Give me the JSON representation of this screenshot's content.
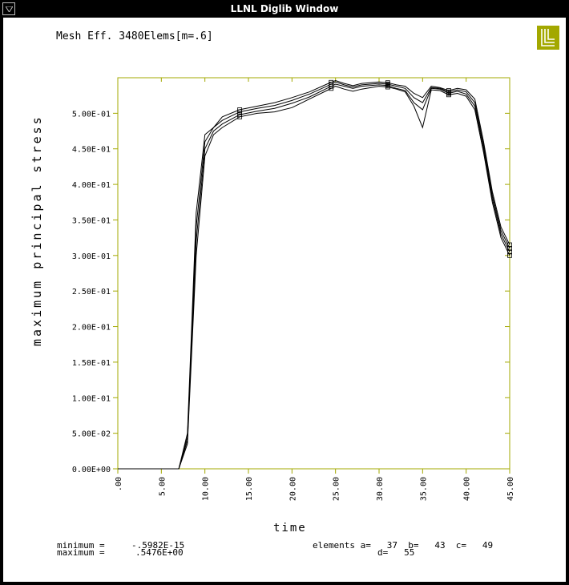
{
  "window": {
    "title": "LLNL Diglib Window",
    "logo_color": "#a3a800",
    "frame_color": "#000000"
  },
  "footer": {
    "minimum_label": "minimum =",
    "minimum_value": "-.5982E-15",
    "maximum_label": "maximum =",
    "maximum_value": ".5476E+00",
    "elements_text": "elements a=   37  b=   43  c=   49",
    "elements_d": "d=   55"
  },
  "chart_data": {
    "type": "line",
    "title": "Mesh Eff. 3480Elems[m=.6]",
    "xlabel": "time",
    "ylabel": "maximum principal stress",
    "xlim": [
      0,
      45
    ],
    "ylim": [
      0,
      0.55
    ],
    "x_ticks": [
      0,
      5,
      10,
      15,
      20,
      25,
      30,
      35,
      40,
      45
    ],
    "x_tick_labels": [
      ".00",
      "5.00",
      "10.00",
      "15.00",
      "20.00",
      "25.00",
      "30.00",
      "35.00",
      "40.00",
      "45.00"
    ],
    "y_ticks": [
      0,
      0.05,
      0.1,
      0.15,
      0.2,
      0.25,
      0.3,
      0.35,
      0.4,
      0.45,
      0.5
    ],
    "y_tick_labels": [
      "0.00E+00",
      "5.00E-02",
      "1.00E-01",
      "1.50E-01",
      "2.00E-01",
      "2.50E-01",
      "3.00E-01",
      "3.50E-01",
      "4.00E-01",
      "4.50E-01",
      "5.00E-01"
    ],
    "frame_color": "#a3a800",
    "x": [
      0,
      2,
      4,
      6,
      7,
      8,
      9,
      10,
      11,
      12,
      14,
      16,
      18,
      20,
      22,
      24,
      25,
      26,
      27,
      28,
      30,
      31,
      32,
      33,
      34,
      35,
      36,
      37,
      38,
      39,
      40,
      41,
      42,
      43,
      44,
      45
    ],
    "series": [
      {
        "values": [
          0,
          0,
          0,
          0,
          0,
          0.05,
          0.36,
          0.47,
          0.48,
          0.495,
          0.505,
          0.51,
          0.515,
          0.522,
          0.53,
          0.541,
          0.546,
          0.542,
          0.539,
          0.542,
          0.544,
          0.543,
          0.54,
          0.538,
          0.528,
          0.522,
          0.538,
          0.536,
          0.532,
          0.535,
          0.533,
          0.52,
          0.46,
          0.39,
          0.34,
          0.315
        ]
      },
      {
        "values": [
          0,
          0,
          0,
          0,
          0,
          0.045,
          0.34,
          0.46,
          0.48,
          0.49,
          0.502,
          0.507,
          0.511,
          0.518,
          0.527,
          0.538,
          0.544,
          0.54,
          0.537,
          0.54,
          0.542,
          0.541,
          0.538,
          0.535,
          0.522,
          0.515,
          0.536,
          0.535,
          0.53,
          0.533,
          0.53,
          0.515,
          0.455,
          0.385,
          0.335,
          0.31
        ]
      },
      {
        "values": [
          0,
          0,
          0,
          0,
          0,
          0.04,
          0.32,
          0.45,
          0.475,
          0.485,
          0.498,
          0.503,
          0.507,
          0.514,
          0.523,
          0.535,
          0.541,
          0.538,
          0.535,
          0.538,
          0.54,
          0.539,
          0.535,
          0.532,
          0.515,
          0.505,
          0.535,
          0.534,
          0.528,
          0.531,
          0.527,
          0.51,
          0.45,
          0.38,
          0.33,
          0.305
        ]
      },
      {
        "values": [
          0,
          0,
          0,
          0,
          0,
          0.035,
          0.3,
          0.44,
          0.47,
          0.48,
          0.495,
          0.5,
          0.502,
          0.508,
          0.52,
          0.532,
          0.538,
          0.534,
          0.531,
          0.534,
          0.538,
          0.537,
          0.534,
          0.53,
          0.51,
          0.48,
          0.533,
          0.532,
          0.526,
          0.528,
          0.524,
          0.505,
          0.445,
          0.375,
          0.325,
          0.3
        ]
      }
    ],
    "markers_x": [
      14,
      24.5,
      31,
      38,
      45
    ]
  }
}
